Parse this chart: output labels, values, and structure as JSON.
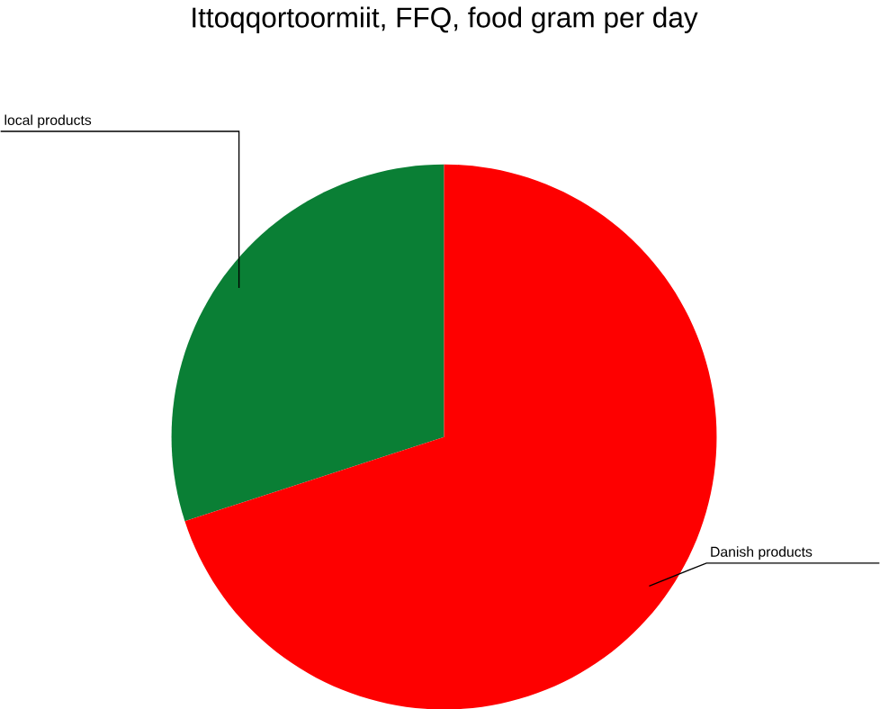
{
  "chart_data": {
    "type": "pie",
    "title": "Ittoqqortoormiit, FFQ, food gram per day",
    "categories": [
      "local products",
      "Danish products"
    ],
    "values": [
      30,
      70
    ],
    "colors": [
      "#0a7f35",
      "#fe0000"
    ]
  }
}
